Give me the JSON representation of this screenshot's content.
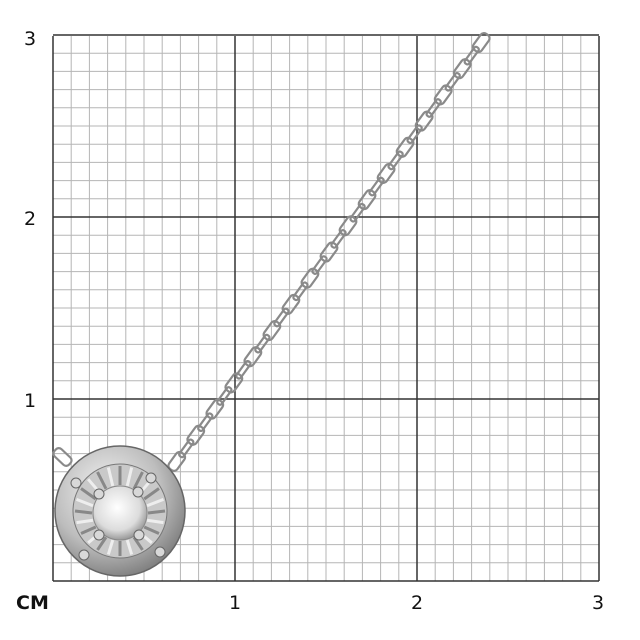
{
  "scale": {
    "unit_label": "CM",
    "y_ticks": [
      "1",
      "2",
      "3"
    ],
    "x_ticks": [
      "1",
      "2",
      "3"
    ]
  },
  "colors": {
    "grid_minor": "#b5b5b5",
    "grid_major": "#333333",
    "metal": "#c8c8c8"
  }
}
